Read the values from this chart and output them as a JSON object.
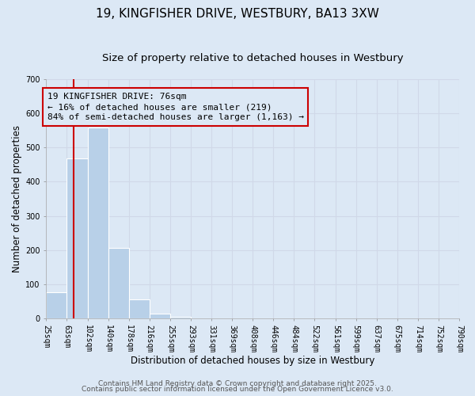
{
  "title": "19, KINGFISHER DRIVE, WESTBURY, BA13 3XW",
  "subtitle": "Size of property relative to detached houses in Westbury",
  "xlabel": "Distribution of detached houses by size in Westbury",
  "ylabel": "Number of detached properties",
  "bar_edges": [
    25,
    63,
    102,
    140,
    178,
    216,
    255,
    293,
    331,
    369,
    408,
    446,
    484,
    522,
    561,
    599,
    637,
    675,
    714,
    752,
    790
  ],
  "bar_heights": [
    78,
    467,
    559,
    207,
    56,
    14,
    5,
    0,
    0,
    0,
    0,
    0,
    0,
    0,
    0,
    0,
    0,
    0,
    0,
    0
  ],
  "bar_color": "#b8d0e8",
  "bar_edgecolor": "#b8d0e8",
  "grid_color": "#d0d8e8",
  "bg_color": "#dce8f5",
  "vline_x": 76,
  "vline_color": "#cc0000",
  "annotation_line1": "19 KINGFISHER DRIVE: 76sqm",
  "annotation_line2": "← 16% of detached houses are smaller (219)",
  "annotation_line3": "84% of semi-detached houses are larger (1,163) →",
  "annotation_box_edgecolor": "#cc0000",
  "annotation_box_facecolor": "#dce8f5",
  "ylim": [
    0,
    700
  ],
  "yticks": [
    0,
    100,
    200,
    300,
    400,
    500,
    600,
    700
  ],
  "tick_labels": [
    "25sqm",
    "63sqm",
    "102sqm",
    "140sqm",
    "178sqm",
    "216sqm",
    "255sqm",
    "293sqm",
    "331sqm",
    "369sqm",
    "408sqm",
    "446sqm",
    "484sqm",
    "522sqm",
    "561sqm",
    "599sqm",
    "637sqm",
    "675sqm",
    "714sqm",
    "752sqm",
    "790sqm"
  ],
  "footer1": "Contains HM Land Registry data © Crown copyright and database right 2025.",
  "footer2": "Contains public sector information licensed under the Open Government Licence v3.0.",
  "title_fontsize": 11,
  "subtitle_fontsize": 9.5,
  "axis_label_fontsize": 8.5,
  "tick_fontsize": 7,
  "annotation_fontsize": 8,
  "footer_fontsize": 6.5
}
